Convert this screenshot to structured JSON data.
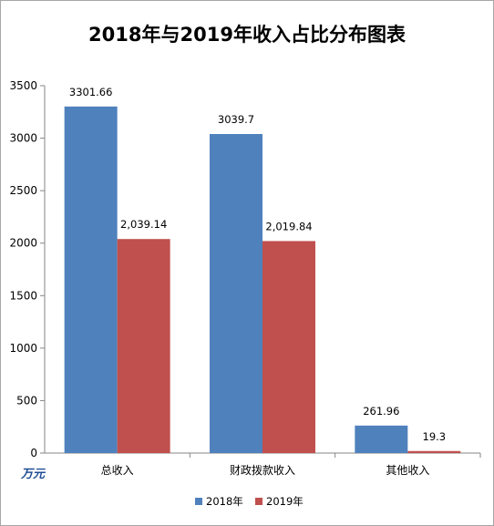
{
  "chart_data": {
    "type": "bar",
    "title": "2018年与2019年收入占比分布图表",
    "unit_label": "万元",
    "categories": [
      "总收入",
      "财政拨款收入",
      "其他收入"
    ],
    "series": [
      {
        "name": "2018年",
        "color": "#4f81bd",
        "values": [
          3301.66,
          3039.7,
          261.96
        ],
        "labels": [
          "3301.66",
          "3039.7",
          "261.96"
        ]
      },
      {
        "name": "2019年",
        "color": "#c0504d",
        "values": [
          2039.14,
          2019.84,
          19.3
        ],
        "labels": [
          "2,039.14",
          "2,019.84",
          "19.3"
        ]
      }
    ],
    "ylim": [
      0,
      3500
    ],
    "yticks": [
      0,
      500,
      1000,
      1500,
      2000,
      2500,
      3000,
      3500
    ],
    "legend_position": "bottom",
    "grid": false
  }
}
